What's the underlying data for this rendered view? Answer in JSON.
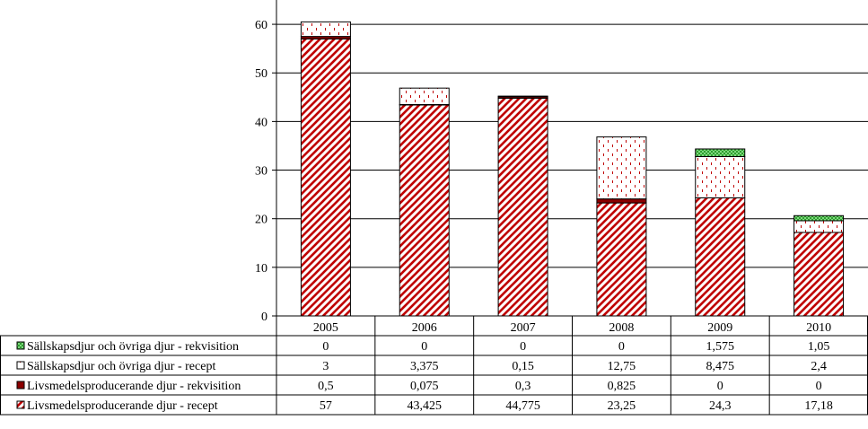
{
  "chart_data": {
    "type": "bar",
    "stacked": true,
    "categories": [
      "2005",
      "2006",
      "2007",
      "2008",
      "2009",
      "2010"
    ],
    "ylim": [
      0,
      65
    ],
    "yticks": [
      0,
      10,
      20,
      30,
      40,
      50,
      60
    ],
    "grid": true,
    "legend_position": "table-left",
    "series": [
      {
        "name": "Livsmedelsproducerande djur - recept",
        "values": [
          57,
          43.425,
          44.775,
          23.25,
          24.3,
          17.18
        ],
        "labels": [
          "57",
          "43,425",
          "44,775",
          "23,25",
          "24,3",
          "17,18"
        ],
        "pattern": "red-diagonal"
      },
      {
        "name": "Livsmedelsproducerande djur - rekvisition",
        "values": [
          0.5,
          0.075,
          0.3,
          0.825,
          0,
          0
        ],
        "labels": [
          "0,5",
          "0,075",
          "0,3",
          "0,825",
          "0",
          "0"
        ],
        "pattern": "dark-red-solid"
      },
      {
        "name": "Sällskapsdjur och övriga djur - recept",
        "values": [
          3,
          3.375,
          0.15,
          12.75,
          8.475,
          2.4
        ],
        "labels": [
          "3",
          "3,375",
          "0,15",
          "12,75",
          "8,475",
          "2,4"
        ],
        "pattern": "red-dots"
      },
      {
        "name": "Sällskapsdjur och övriga djur - rekvisition",
        "values": [
          0,
          0,
          0,
          0,
          1.575,
          1.05
        ],
        "labels": [
          "0",
          "0",
          "0",
          "0",
          "1,575",
          "1,05"
        ],
        "pattern": "green-check"
      }
    ],
    "table_row_order": [
      3,
      2,
      1,
      0
    ]
  }
}
